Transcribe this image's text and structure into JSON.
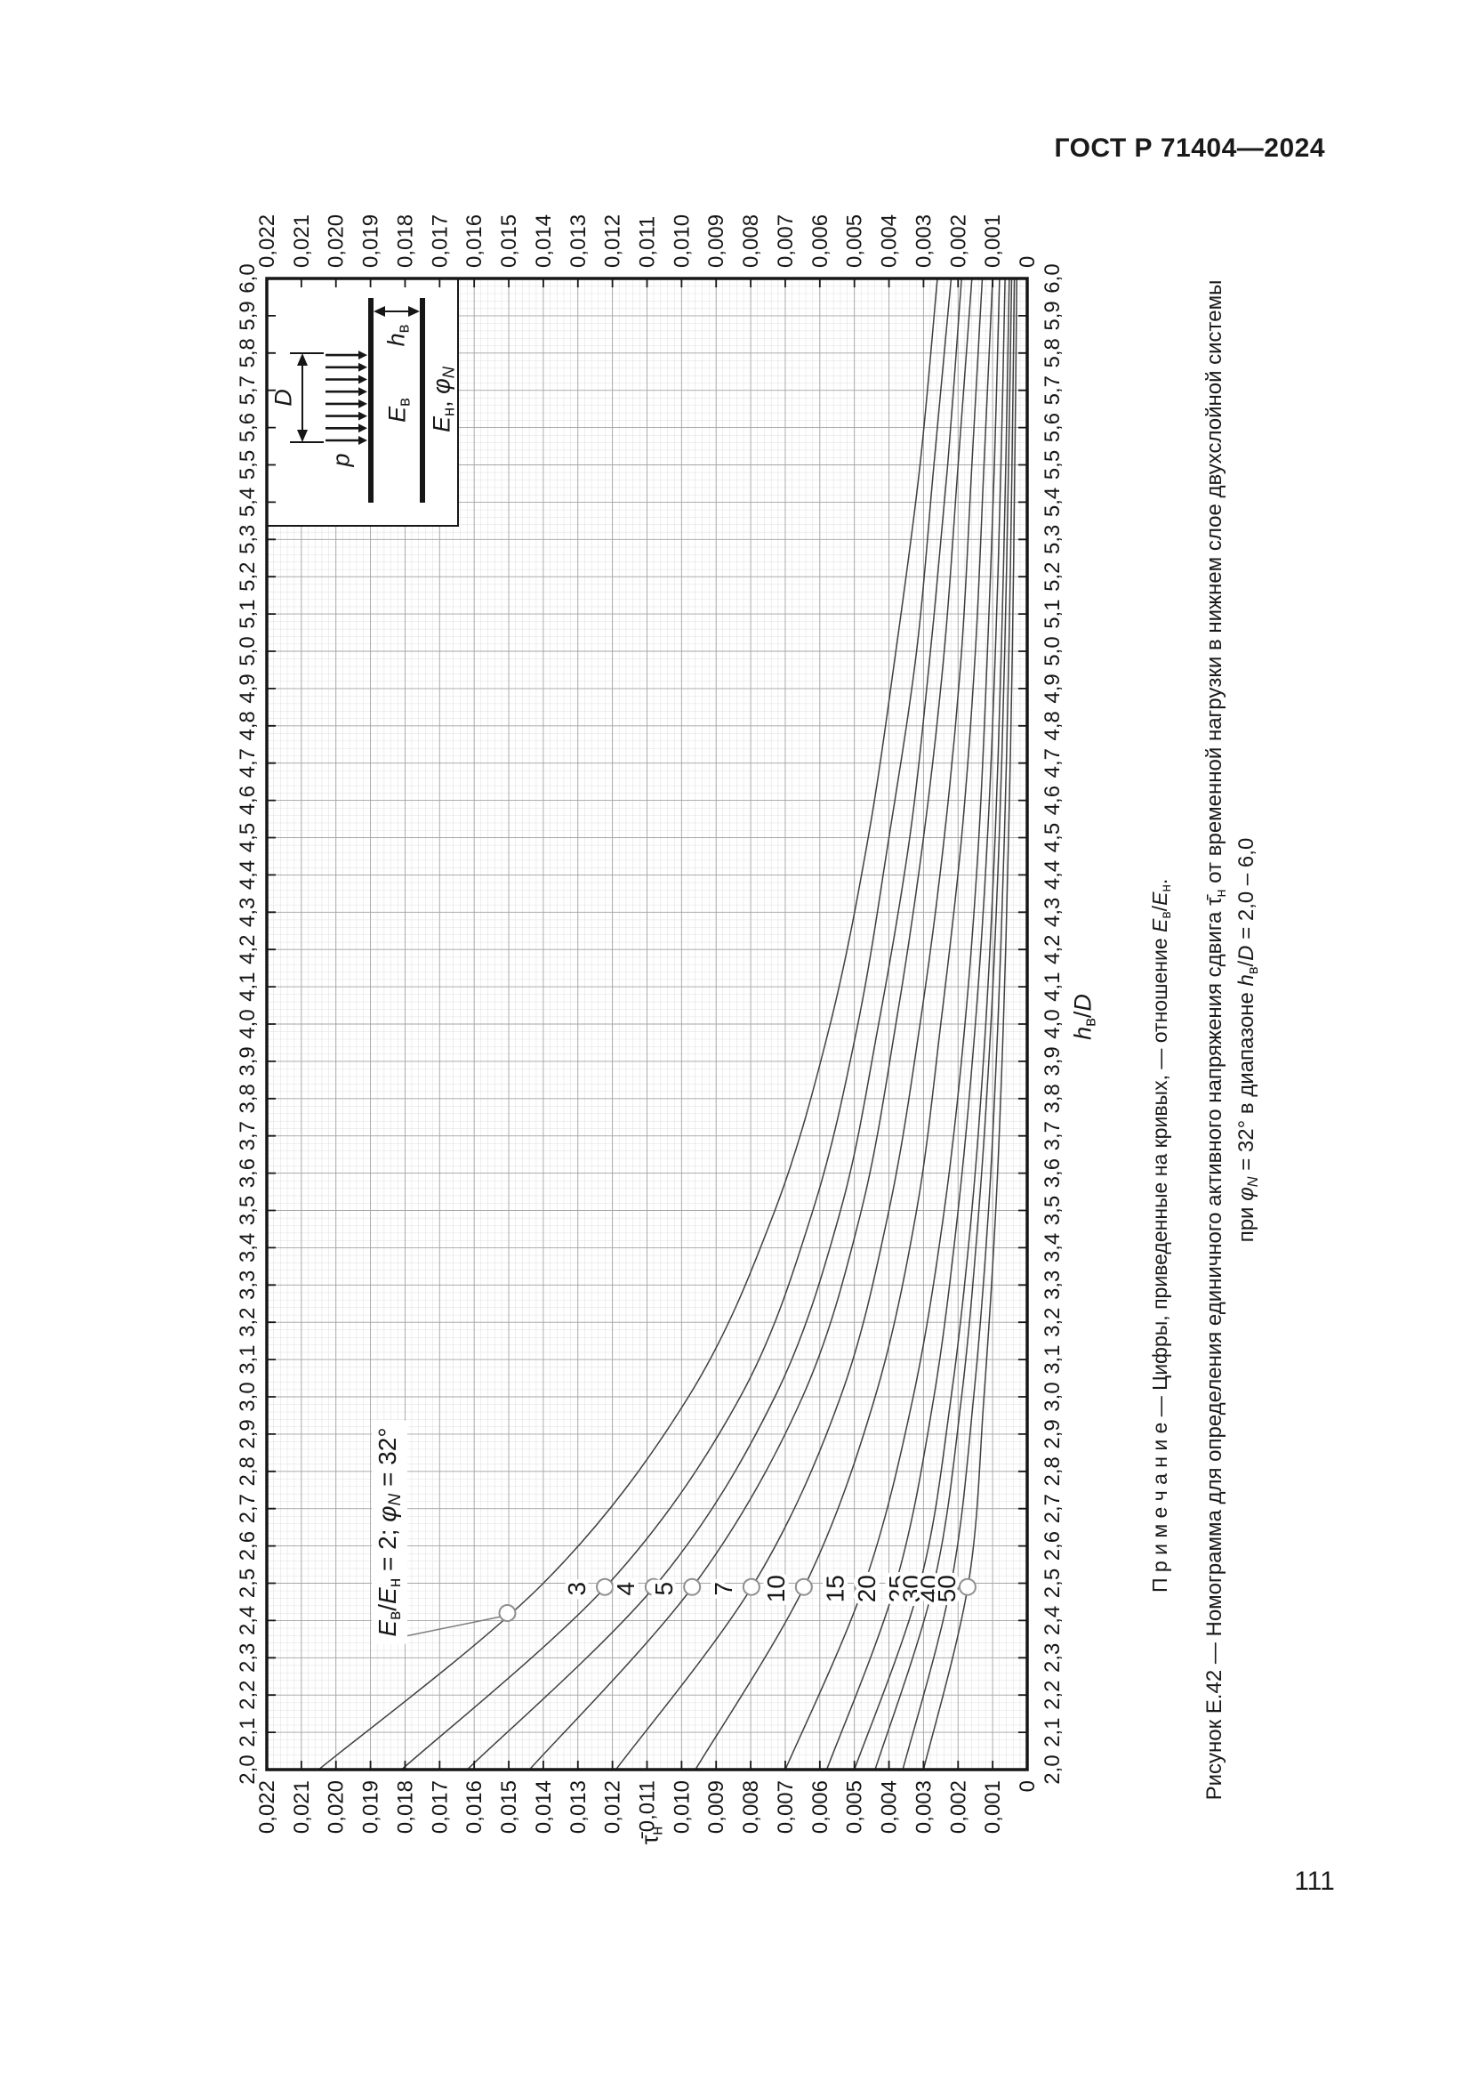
{
  "page": {
    "header": "ГОСТ Р 71404—2024",
    "page_number": "111"
  },
  "figure": {
    "note": [
      {
        "t": "П р и м е ч а н и е — Цифры, приведенные на кривых, — отношение "
      },
      {
        "t": "E",
        "i": true
      },
      {
        "t": "в",
        "sub": true
      },
      {
        "t": "/"
      },
      {
        "t": "E",
        "i": true
      },
      {
        "t": "н",
        "sub": true
      },
      {
        "t": "."
      }
    ],
    "caption1": [
      {
        "t": "Рисунок Е.42 — Номограмма для определения единичного активного напряжения сдвига "
      },
      {
        "t": "τ̄"
      },
      {
        "t": "н",
        "sub": true
      },
      {
        "t": " от временной нагрузки в нижнем слое двухслойной системы"
      }
    ],
    "caption2": [
      {
        "t": "при "
      },
      {
        "t": "φ",
        "i": true
      },
      {
        "t": "N",
        "i": true,
        "sub": true
      },
      {
        "t": " = 32° в диапазоне "
      },
      {
        "t": "h",
        "i": true
      },
      {
        "t": "в",
        "sub": true
      },
      {
        "t": "/"
      },
      {
        "t": "D",
        "i": true
      },
      {
        "t": " = 2,0 – 6,0"
      }
    ],
    "e_label": [
      {
        "t": "E",
        "i": true
      },
      {
        "t": "в",
        "sub": true
      },
      {
        "t": "/"
      },
      {
        "t": "E",
        "i": true
      },
      {
        "t": "н",
        "sub": true
      },
      {
        "t": " = 2; "
      },
      {
        "t": "φ",
        "i": true
      },
      {
        "t": "N",
        "i": true,
        "sub": true
      },
      {
        "t": " = 32°"
      }
    ],
    "tau_title": [
      {
        "t": "τ̄"
      },
      {
        "t": "н",
        "sub": true
      }
    ],
    "hd_title": [
      {
        "t": "h",
        "i": true
      },
      {
        "t": "в",
        "sub": true
      },
      {
        "t": "/"
      },
      {
        "t": "D",
        "i": true
      }
    ],
    "inset": {
      "p": [
        {
          "t": "p",
          "i": true
        }
      ],
      "D": [
        {
          "t": "D",
          "i": true
        }
      ],
      "hv": [
        {
          "t": "h",
          "i": true
        },
        {
          "t": "в",
          "sub": true
        }
      ],
      "Ev": [
        {
          "t": "E",
          "i": true
        },
        {
          "t": "в",
          "sub": true
        }
      ],
      "En": [
        {
          "t": "E",
          "i": true
        },
        {
          "t": "н",
          "sub": true
        },
        {
          "t": ", "
        },
        {
          "t": "φ",
          "i": true
        },
        {
          "t": "N",
          "i": true,
          "sub": true
        }
      ]
    }
  },
  "chart_data": {
    "type": "line",
    "title": "Номограмма Е.42: τ̄н от hв/D при φN = 32°",
    "xlabel": "hв/D",
    "ylabel": "τ̄н",
    "x_axis": {
      "min": 2.0,
      "max": 6.0,
      "major_step": 0.1,
      "minor_step": 0.02,
      "tick_labels": [
        "2,0",
        "2,1",
        "2,2",
        "2,3",
        "2,4",
        "2,5",
        "2,6",
        "2,7",
        "2,8",
        "2,9",
        "3,0",
        "3,1",
        "3,2",
        "3,3",
        "3,4",
        "3,5",
        "3,6",
        "3,7",
        "3,8",
        "3,9",
        "4,0",
        "4,1",
        "4,2",
        "4,3",
        "4,4",
        "4,5",
        "4,6",
        "4,7",
        "4,8",
        "4,9",
        "5,0",
        "5,1",
        "5,2",
        "5,3",
        "5,4",
        "5,5",
        "5,6",
        "5,7",
        "5,8",
        "5,9",
        "6,0"
      ]
    },
    "y_axis": {
      "min": 0,
      "max": 0.022,
      "major_step": 0.001,
      "minor_step": 0.0002,
      "tick_labels": [
        "0",
        "0,001",
        "0,002",
        "0,003",
        "0,004",
        "0,005",
        "0,006",
        "0,007",
        "0,008",
        "0,009",
        "0,010",
        "0,011",
        "0,012",
        "0,013",
        "0,014",
        "0,015",
        "0,016",
        "0,017",
        "0,018",
        "0,019",
        "0,020",
        "0,021",
        "0,022"
      ]
    },
    "grid": "fine graph-paper grid on",
    "legend": "числа на кривых — отношение Eв/Eн",
    "h_points": [
      2.0,
      2.5,
      3.0,
      3.5,
      4.0,
      4.5,
      5.0,
      5.5,
      6.0
    ],
    "series": [
      {
        "name": "2",
        "values": [
          0.0205,
          0.014,
          0.0098,
          0.0073,
          0.0057,
          0.0046,
          0.0038,
          0.0031,
          0.0026
        ]
      },
      {
        "name": "3",
        "values": [
          0.0181,
          0.0121,
          0.0083,
          0.0062,
          0.0049,
          0.004,
          0.0032,
          0.0027,
          0.0022
        ]
      },
      {
        "name": "4",
        "values": [
          0.0162,
          0.0107,
          0.0073,
          0.0054,
          0.0043,
          0.0034,
          0.0028,
          0.0023,
          0.0019
        ]
      },
      {
        "name": "5",
        "values": [
          0.0144,
          0.0096,
          0.0065,
          0.0048,
          0.0038,
          0.003,
          0.0024,
          0.002,
          0.0016
        ]
      },
      {
        "name": "7",
        "values": [
          0.0119,
          0.0079,
          0.0054,
          0.004,
          0.0031,
          0.0024,
          0.0019,
          0.0016,
          0.0013
        ]
      },
      {
        "name": "10",
        "values": [
          0.0096,
          0.0064,
          0.0044,
          0.0032,
          0.0025,
          0.0019,
          0.0015,
          0.00125,
          0.001
        ]
      },
      {
        "name": "15",
        "values": [
          0.007,
          0.0047,
          0.0033,
          0.0024,
          0.0018,
          0.0014,
          0.00115,
          0.00095,
          0.0008
        ]
      },
      {
        "name": "20",
        "values": [
          0.0058,
          0.0038,
          0.0027,
          0.002,
          0.0015,
          0.00115,
          0.00092,
          0.00076,
          0.00064
        ]
      },
      {
        "name": "25",
        "values": [
          0.005,
          0.0031,
          0.0022,
          0.0016,
          0.0012,
          0.00093,
          0.00075,
          0.00062,
          0.00052
        ]
      },
      {
        "name": "30",
        "values": [
          0.0044,
          0.0027,
          0.0019,
          0.0014,
          0.00105,
          0.00081,
          0.00065,
          0.00054,
          0.00045
        ]
      },
      {
        "name": "40",
        "values": [
          0.0036,
          0.0022,
          0.00155,
          0.00112,
          0.00085,
          0.00066,
          0.00053,
          0.00044,
          0.00037
        ]
      },
      {
        "name": "50",
        "values": [
          0.003,
          0.0017,
          0.00125,
          0.00091,
          0.00069,
          0.00054,
          0.00043,
          0.00036,
          0.0003
        ]
      }
    ],
    "marker_h": 2.49,
    "curve2_label_h": 2.42
  }
}
